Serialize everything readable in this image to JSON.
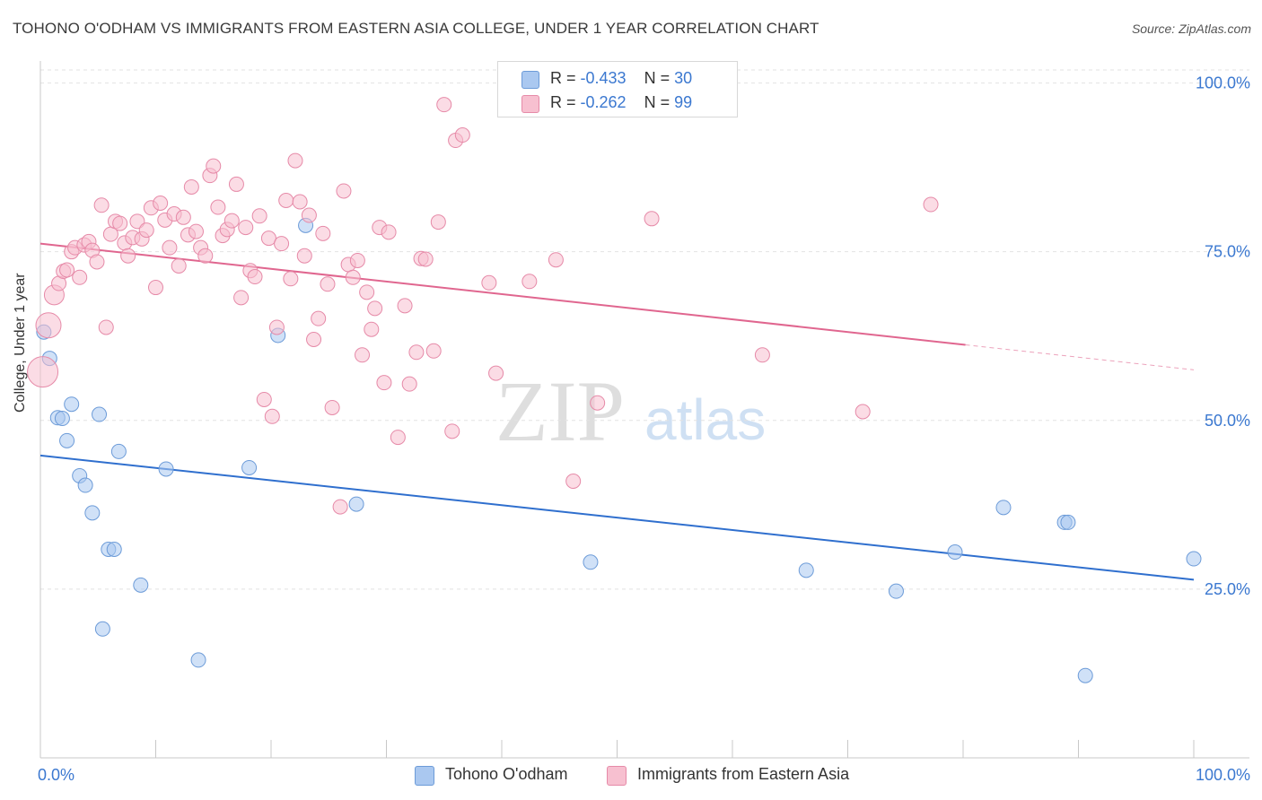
{
  "title": "TOHONO O'ODHAM VS IMMIGRANTS FROM EASTERN ASIA COLLEGE, UNDER 1 YEAR CORRELATION CHART",
  "source": "Source: ZipAtlas.com",
  "watermark": {
    "zip": "ZIP",
    "atlas": "atlas"
  },
  "legend_top": {
    "rows": [
      {
        "r_label": "R = ",
        "r_value": "-0.433",
        "n_label": "N = ",
        "n_value": "30",
        "color": "#aac8f0",
        "border": "#6c9bd8"
      },
      {
        "r_label": "R = ",
        "r_value": "-0.262",
        "n_label": "N = ",
        "n_value": "99",
        "color": "#f7c0d0",
        "border": "#e68aa8"
      }
    ]
  },
  "legend_bottom": [
    {
      "label": "Tohono O'odham",
      "color": "#aac8f0",
      "border": "#6c9bd8"
    },
    {
      "label": "Immigrants from Eastern Asia",
      "color": "#f7c0d0",
      "border": "#e68aa8"
    }
  ],
  "chart_data": {
    "type": "scatter",
    "title": "TOHONO O'ODHAM VS IMMIGRANTS FROM EASTERN ASIA COLLEGE, UNDER 1 YEAR CORRELATION CHART",
    "xlabel": "",
    "ylabel": "College, Under 1 year",
    "xlim": [
      0,
      100
    ],
    "ylim": [
      0,
      103
    ],
    "x_tick_labels": [
      {
        "value": 0,
        "label": "0.0%"
      },
      {
        "value": 100,
        "label": "100.0%"
      }
    ],
    "y_tick_labels": [
      {
        "value": 25,
        "label": "25.0%"
      },
      {
        "value": 50,
        "label": "50.0%"
      },
      {
        "value": 75,
        "label": "75.0%"
      },
      {
        "value": 100,
        "label": "100.0%"
      }
    ],
    "grid": true,
    "legend_position": "top-center",
    "series": [
      {
        "name": "Tohono O'odham",
        "color": "#6c9bd8",
        "fill": "#aac8f0",
        "trend": {
          "x1": 0,
          "y1": 44.8,
          "x2": 100,
          "y2": 26.4,
          "color": "#2f6fce"
        },
        "points": [
          [
            0.3,
            63.1
          ],
          [
            0.8,
            59.2
          ],
          [
            1.5,
            50.4
          ],
          [
            1.9,
            50.3
          ],
          [
            2.3,
            47.0
          ],
          [
            2.7,
            52.4
          ],
          [
            3.4,
            41.8
          ],
          [
            3.9,
            40.4
          ],
          [
            4.5,
            36.3
          ],
          [
            5.1,
            50.9
          ],
          [
            5.4,
            19.1
          ],
          [
            5.9,
            30.9
          ],
          [
            6.4,
            30.9
          ],
          [
            6.8,
            45.4
          ],
          [
            8.7,
            25.6
          ],
          [
            10.9,
            42.8
          ],
          [
            13.7,
            14.5
          ],
          [
            18.1,
            43.0
          ],
          [
            20.6,
            62.6
          ],
          [
            23.0,
            78.9
          ],
          [
            27.4,
            37.6
          ],
          [
            47.7,
            29.0
          ],
          [
            66.4,
            27.8
          ],
          [
            74.2,
            24.7
          ],
          [
            79.3,
            30.5
          ],
          [
            83.5,
            37.1
          ],
          [
            88.8,
            34.9
          ],
          [
            89.1,
            34.9
          ],
          [
            90.6,
            12.2
          ],
          [
            100.0,
            29.5
          ]
        ]
      },
      {
        "name": "Immigrants from Eastern Asia",
        "color": "#e68aa8",
        "fill": "#f7c0d0",
        "trend": {
          "x1": 0,
          "y1": 76.2,
          "x2": 80.2,
          "y2": 61.2,
          "color": "#e0668f",
          "dashed_to": {
            "x": 100,
            "y": 57.5
          }
        },
        "points": [
          [
            0.2,
            57.2
          ],
          [
            0.7,
            64.1
          ],
          [
            1.2,
            68.6
          ],
          [
            1.6,
            70.3
          ],
          [
            2.0,
            72.1
          ],
          [
            2.3,
            72.3
          ],
          [
            2.7,
            75.0
          ],
          [
            3.0,
            75.6
          ],
          [
            3.4,
            71.2
          ],
          [
            3.8,
            76.0
          ],
          [
            4.2,
            76.5
          ],
          [
            4.5,
            75.2
          ],
          [
            4.9,
            73.5
          ],
          [
            5.3,
            81.9
          ],
          [
            5.7,
            63.8
          ],
          [
            6.1,
            77.6
          ],
          [
            6.5,
            79.5
          ],
          [
            6.9,
            79.2
          ],
          [
            7.3,
            76.3
          ],
          [
            7.6,
            74.4
          ],
          [
            8.0,
            77.1
          ],
          [
            8.4,
            79.5
          ],
          [
            8.8,
            76.9
          ],
          [
            9.2,
            78.2
          ],
          [
            9.6,
            81.5
          ],
          [
            10.0,
            69.7
          ],
          [
            10.4,
            82.2
          ],
          [
            10.8,
            79.7
          ],
          [
            11.2,
            75.6
          ],
          [
            11.6,
            80.6
          ],
          [
            12.0,
            72.9
          ],
          [
            12.4,
            80.1
          ],
          [
            12.8,
            77.5
          ],
          [
            13.1,
            84.6
          ],
          [
            13.5,
            78.0
          ],
          [
            13.9,
            75.6
          ],
          [
            14.3,
            74.4
          ],
          [
            14.7,
            86.3
          ],
          [
            15.0,
            87.7
          ],
          [
            15.4,
            81.6
          ],
          [
            15.8,
            77.4
          ],
          [
            16.2,
            78.3
          ],
          [
            16.6,
            79.6
          ],
          [
            17.0,
            85.0
          ],
          [
            17.4,
            68.2
          ],
          [
            17.8,
            78.6
          ],
          [
            18.2,
            72.2
          ],
          [
            18.6,
            71.3
          ],
          [
            19.0,
            80.3
          ],
          [
            19.4,
            53.1
          ],
          [
            19.8,
            77.0
          ],
          [
            20.1,
            50.6
          ],
          [
            20.5,
            63.8
          ],
          [
            20.9,
            76.2
          ],
          [
            21.3,
            82.6
          ],
          [
            21.7,
            71.0
          ],
          [
            22.1,
            88.5
          ],
          [
            22.5,
            82.4
          ],
          [
            22.9,
            74.4
          ],
          [
            23.3,
            80.4
          ],
          [
            23.7,
            62.0
          ],
          [
            24.1,
            65.1
          ],
          [
            24.5,
            77.7
          ],
          [
            24.9,
            70.2
          ],
          [
            25.3,
            51.9
          ],
          [
            26.0,
            37.2
          ],
          [
            26.3,
            84.0
          ],
          [
            26.7,
            73.1
          ],
          [
            27.1,
            71.2
          ],
          [
            27.5,
            73.7
          ],
          [
            27.9,
            59.7
          ],
          [
            28.3,
            69.0
          ],
          [
            28.7,
            63.5
          ],
          [
            29.0,
            66.6
          ],
          [
            29.4,
            78.6
          ],
          [
            29.8,
            55.6
          ],
          [
            30.2,
            77.9
          ],
          [
            31.0,
            47.5
          ],
          [
            31.6,
            67.0
          ],
          [
            32.0,
            55.4
          ],
          [
            32.6,
            60.1
          ],
          [
            33.0,
            74.0
          ],
          [
            33.4,
            73.9
          ],
          [
            34.1,
            60.3
          ],
          [
            34.5,
            79.4
          ],
          [
            35.0,
            96.8
          ],
          [
            35.7,
            48.4
          ],
          [
            36.0,
            91.5
          ],
          [
            36.6,
            92.3
          ],
          [
            38.9,
            70.4
          ],
          [
            39.5,
            57.0
          ],
          [
            42.4,
            70.6
          ],
          [
            44.7,
            73.8
          ],
          [
            46.2,
            41.0
          ],
          [
            48.3,
            52.6
          ],
          [
            53.0,
            79.9
          ],
          [
            62.6,
            59.7
          ],
          [
            71.3,
            51.3
          ],
          [
            77.2,
            82.0
          ]
        ]
      }
    ]
  }
}
